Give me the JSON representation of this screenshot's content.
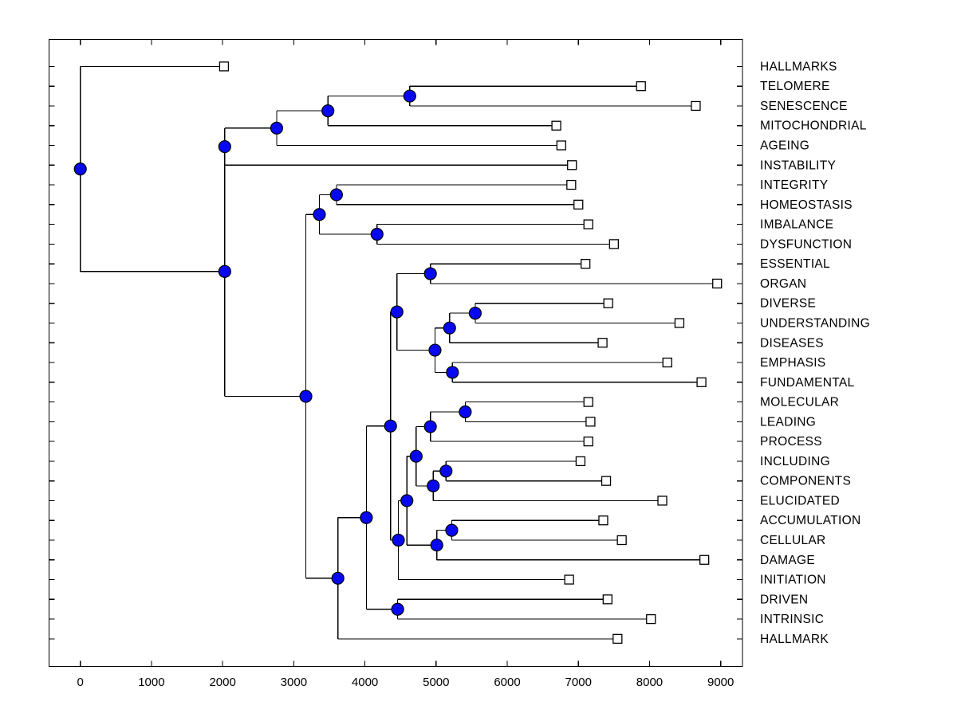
{
  "figure": {
    "background": "#ffffff",
    "line_color": "#000000",
    "internal_node_color": "#0808f0",
    "internal_node_edge_color": "#000000",
    "leaf_marker_fill": "#ffffff",
    "leaf_marker_edge_color": "#000000"
  },
  "chart_data": {
    "type": "dendrogram",
    "subtype": "phylogenetic-tree",
    "orientation": "root-left-leaves-right",
    "grid": false,
    "legend": null,
    "title": "",
    "xlabel": "",
    "ylabel": "",
    "x_axis": {
      "min": 0,
      "max": 9300,
      "ticks": [
        0,
        1000,
        2000,
        3000,
        4000,
        5000,
        6000,
        7000,
        8000,
        9000
      ]
    },
    "leaf_labels_top_to_bottom": [
      "HALLMARKS",
      "TELOMERE",
      "SENESCENCE",
      "MITOCHONDRIAL",
      "AGEING",
      "INSTABILITY",
      "INTEGRITY",
      "HOMEOSTASIS",
      "IMBALANCE",
      "DYSFUNCTION",
      "ESSENTIAL",
      "ORGAN",
      "DIVERSE",
      "UNDERSTANDING",
      "DISEASES",
      "EMPHASIS",
      "FUNDAMENTAL",
      "MOLECULAR",
      "LEADING",
      "PROCESS",
      "INCLUDING",
      "COMPONENTS",
      "ELUCIDATED",
      "ACCUMULATION",
      "CELLULAR",
      "DAMAGE",
      "INITIATION",
      "DRIVEN",
      "INTRINSIC",
      "HALLMARK"
    ],
    "tree": {
      "d": 0,
      "children": [
        {
          "leaf": "HALLMARKS",
          "d": 2020
        },
        {
          "d": 2030,
          "children": [
            {
              "d": 2030,
              "children": [
                {
                  "d": 2760,
                  "children": [
                    {
                      "d": 3480,
                      "children": [
                        {
                          "d": 4630,
                          "children": [
                            {
                              "leaf": "TELOMERE",
                              "d": 7880
                            },
                            {
                              "leaf": "SENESCENCE",
                              "d": 8650
                            }
                          ]
                        },
                        {
                          "leaf": "MITOCHONDRIAL",
                          "d": 6690
                        }
                      ]
                    },
                    {
                      "leaf": "AGEING",
                      "d": 6760
                    }
                  ]
                },
                {
                  "leaf": "INSTABILITY",
                  "d": 6910
                }
              ]
            },
            {
              "d": 3170,
              "children": [
                {
                  "d": 3360,
                  "children": [
                    {
                      "d": 3600,
                      "children": [
                        {
                          "leaf": "INTEGRITY",
                          "d": 6900
                        },
                        {
                          "leaf": "HOMEOSTASIS",
                          "d": 7000
                        }
                      ]
                    },
                    {
                      "d": 4170,
                      "children": [
                        {
                          "leaf": "IMBALANCE",
                          "d": 7140
                        },
                        {
                          "leaf": "DYSFUNCTION",
                          "d": 7500
                        }
                      ]
                    }
                  ]
                },
                {
                  "d": 3620,
                  "children": [
                    {
                      "d": 4020,
                      "children": [
                        {
                          "d": 4360,
                          "children": [
                            {
                              "d": 4450,
                              "children": [
                                {
                                  "d": 4920,
                                  "children": [
                                    {
                                      "leaf": "ESSENTIAL",
                                      "d": 7100
                                    },
                                    {
                                      "leaf": "ORGAN",
                                      "d": 8950
                                    }
                                  ]
                                },
                                {
                                  "d": 4985,
                                  "children": [
                                    {
                                      "d": 5190,
                                      "children": [
                                        {
                                          "d": 5550,
                                          "children": [
                                            {
                                              "leaf": "DIVERSE",
                                              "d": 7420
                                            },
                                            {
                                              "leaf": "UNDERSTANDING",
                                              "d": 8420
                                            }
                                          ]
                                        },
                                        {
                                          "leaf": "DISEASES",
                                          "d": 7340
                                        }
                                      ]
                                    },
                                    {
                                      "d": 5230,
                                      "children": [
                                        {
                                          "leaf": "EMPHASIS",
                                          "d": 8250
                                        },
                                        {
                                          "leaf": "FUNDAMENTAL",
                                          "d": 8730
                                        }
                                      ]
                                    }
                                  ]
                                }
                              ]
                            },
                            {
                              "d": 4470,
                              "children": [
                                {
                                  "d": 4590,
                                  "children": [
                                    {
                                      "d": 4720,
                                      "children": [
                                        {
                                          "d": 4920,
                                          "children": [
                                            {
                                              "d": 5410,
                                              "children": [
                                                {
                                                  "leaf": "MOLECULAR",
                                                  "d": 7140
                                                },
                                                {
                                                  "leaf": "LEADING",
                                                  "d": 7170
                                                }
                                              ]
                                            },
                                            {
                                              "leaf": "PROCESS",
                                              "d": 7140
                                            }
                                          ]
                                        },
                                        {
                                          "d": 4960,
                                          "children": [
                                            {
                                              "d": 5140,
                                              "children": [
                                                {
                                                  "leaf": "INCLUDING",
                                                  "d": 7030
                                                },
                                                {
                                                  "leaf": "COMPONENTS",
                                                  "d": 7390
                                                }
                                              ]
                                            },
                                            {
                                              "leaf": "ELUCIDATED",
                                              "d": 8180
                                            }
                                          ]
                                        }
                                      ]
                                    },
                                    {
                                      "d": 5010,
                                      "children": [
                                        {
                                          "d": 5220,
                                          "children": [
                                            {
                                              "leaf": "ACCUMULATION",
                                              "d": 7350
                                            },
                                            {
                                              "leaf": "CELLULAR",
                                              "d": 7610
                                            }
                                          ]
                                        },
                                        {
                                          "leaf": "DAMAGE",
                                          "d": 8770
                                        }
                                      ]
                                    }
                                  ]
                                },
                                {
                                  "leaf": "INITIATION",
                                  "d": 6870
                                }
                              ]
                            }
                          ]
                        },
                        {
                          "d": 4460,
                          "children": [
                            {
                              "leaf": "DRIVEN",
                              "d": 7410
                            },
                            {
                              "leaf": "INTRINSIC",
                              "d": 8020
                            }
                          ]
                        }
                      ]
                    },
                    {
                      "leaf": "HALLMARK",
                      "d": 7550
                    }
                  ]
                }
              ]
            }
          ]
        }
      ]
    }
  }
}
